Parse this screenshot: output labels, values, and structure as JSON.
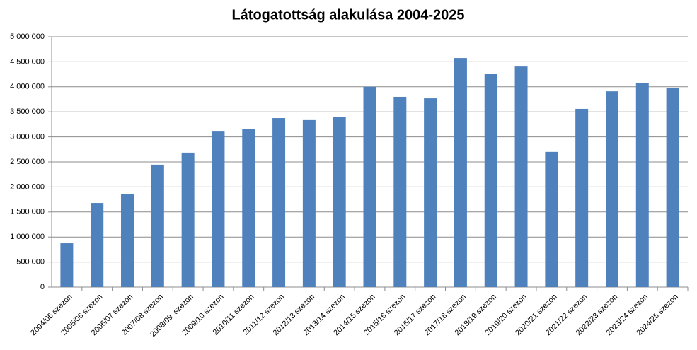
{
  "chart_data": {
    "type": "bar",
    "title": "Látogatottság alakulása 2004-2025",
    "categories": [
      "2004/05 szezon",
      "2005/06 szezon",
      "2006/07 szezon",
      "2007/08 szezon",
      "2008/09  szezon",
      "2009/10 szezon",
      "2010/11 szezon",
      "2011/12 szezon",
      "2012/13 szezon",
      "2013/14 szezon",
      "2014/15 szezon",
      "2015/16 szezon",
      "2016/17 szezon",
      "2017/18 szezon",
      "2018/19 szezon",
      "2019/20 szezon",
      "2020/21 szezon",
      "2021/22 szezon",
      "2022/23 szezon",
      "2023/24 szezon",
      "2024/25 szezon"
    ],
    "values": [
      875000,
      1680000,
      1850000,
      2445000,
      2685000,
      3120000,
      3150000,
      3375000,
      3335000,
      3390000,
      4000000,
      3800000,
      3770000,
      4575000,
      4265000,
      4405000,
      2700000,
      3560000,
      3910000,
      4080000,
      3970000
    ],
    "color": "#4f81bd",
    "ylim": [
      0,
      5000000
    ],
    "yticks": [
      0,
      {
        "value": 500000,
        "label": "500 000"
      },
      {
        "value": 1000000,
        "label": "1 000 000"
      },
      {
        "value": 1500000,
        "label": "1 500 000"
      },
      {
        "value": 2000000,
        "label": "2 000 000"
      },
      {
        "value": 2500000,
        "label": "2 500 000"
      },
      {
        "value": 3000000,
        "label": "3 000 000"
      },
      {
        "value": 3500000,
        "label": "3 500 000"
      },
      {
        "value": 4000000,
        "label": "4 000 000"
      },
      {
        "value": 4500000,
        "label": "4 500 000"
      },
      {
        "value": 5000000,
        "label": "5 000 000"
      }
    ],
    "grid": true
  }
}
